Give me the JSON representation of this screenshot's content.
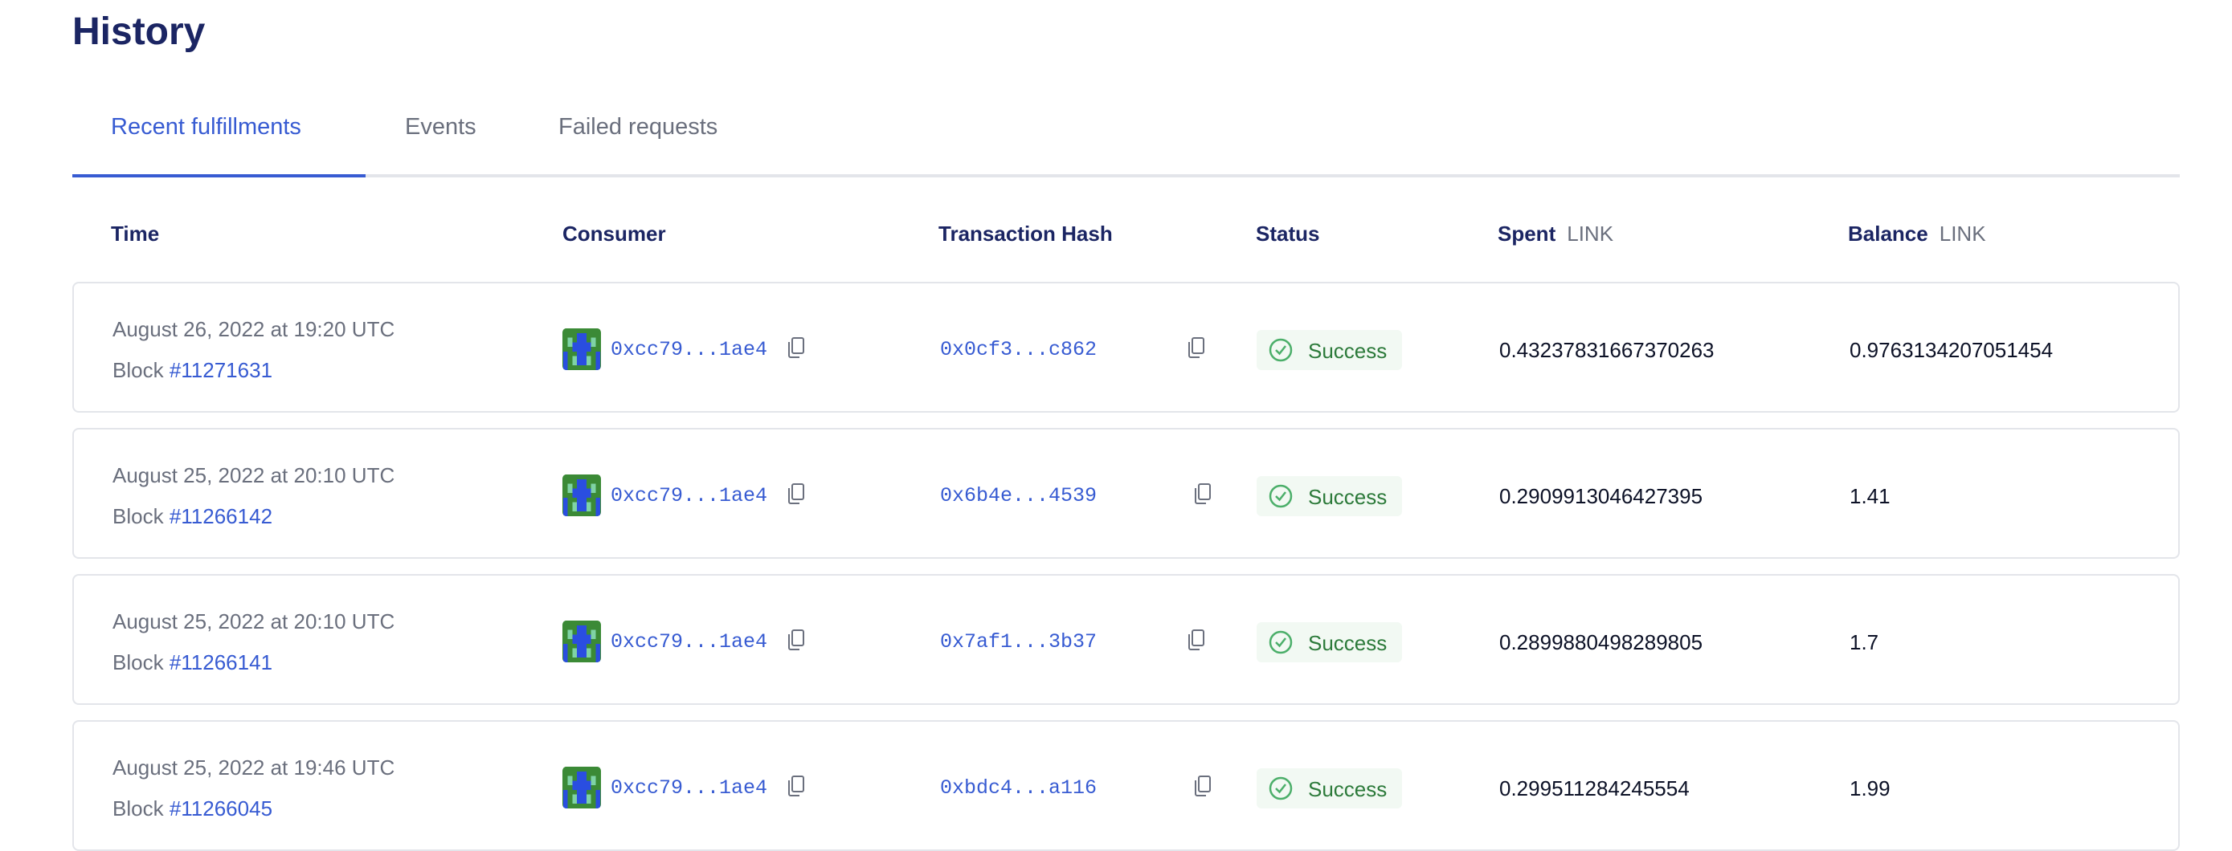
{
  "page": {
    "title": "History"
  },
  "tabs": [
    {
      "label": "Recent fulfillments",
      "active": true
    },
    {
      "label": "Events",
      "active": false
    },
    {
      "label": "Failed requests",
      "active": false
    }
  ],
  "columns": {
    "time": "Time",
    "consumer": "Consumer",
    "tx_hash": "Transaction Hash",
    "status": "Status",
    "spent": "Spent",
    "spent_unit": "LINK",
    "balance": "Balance",
    "balance_unit": "LINK"
  },
  "block_prefix": "Block",
  "rows": [
    {
      "time": "August 26, 2022 at 19:20 UTC",
      "block": "#11271631",
      "consumer": "0xcc79...1ae4",
      "tx": "0x0cf3...c862",
      "status": "Success",
      "spent": "0.43237831667370263",
      "balance": "0.9763134207051454"
    },
    {
      "time": "August 25, 2022 at 20:10 UTC",
      "block": "#11266142",
      "consumer": "0xcc79...1ae4",
      "tx": "0x6b4e...4539",
      "status": "Success",
      "spent": "0.2909913046427395",
      "balance": "1.41"
    },
    {
      "time": "August 25, 2022 at 20:10 UTC",
      "block": "#11266141",
      "consumer": "0xcc79...1ae4",
      "tx": "0x7af1...3b37",
      "status": "Success",
      "spent": "0.2899880498289805",
      "balance": "1.7"
    },
    {
      "time": "August 25, 2022 at 19:46 UTC",
      "block": "#11266045",
      "consumer": "0xcc79...1ae4",
      "tx": "0xbdc4...a116",
      "status": "Success",
      "spent": "0.299511284245554",
      "balance": "1.99"
    }
  ],
  "colors": {
    "accent": "#375bd2",
    "heading": "#1b2563",
    "success": "#2c7a3a",
    "success_bg": "#f2f9f3"
  }
}
